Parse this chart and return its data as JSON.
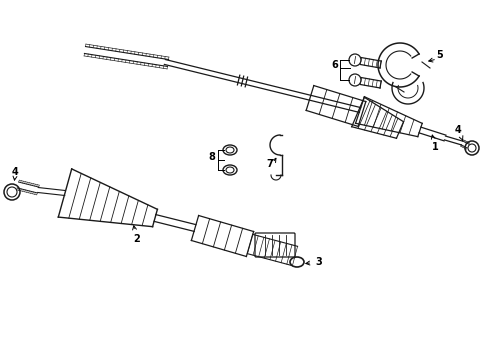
{
  "bg_color": "#ffffff",
  "line_color": "#1a1a1a",
  "label_color": "#000000",
  "figsize": [
    4.89,
    3.6
  ],
  "dpi": 100,
  "xlim": [
    0,
    489
  ],
  "ylim": [
    0,
    360
  ]
}
